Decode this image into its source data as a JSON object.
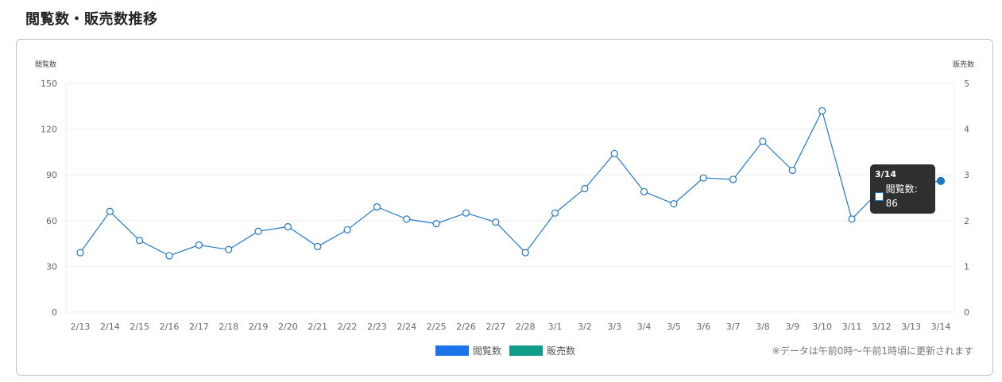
{
  "page": {
    "title": "閲覧数・販売数推移",
    "footnote": "※データは午前0時〜午前1時頃に更新されます"
  },
  "colors": {
    "views_line": "#1f78c8",
    "views_legend": "#1a73e8",
    "sales_legend": "#0f9d8a",
    "grid": "#eeeeee",
    "tooltip_bg": "#2f2f2f"
  },
  "chart_data": {
    "type": "line",
    "categories": [
      "2/13",
      "2/14",
      "2/15",
      "2/16",
      "2/17",
      "2/18",
      "2/19",
      "2/20",
      "2/21",
      "2/22",
      "2/23",
      "2/24",
      "2/25",
      "2/26",
      "2/27",
      "2/28",
      "3/1",
      "3/2",
      "3/3",
      "3/4",
      "3/5",
      "3/6",
      "3/7",
      "3/8",
      "3/9",
      "3/10",
      "3/11",
      "3/12",
      "3/13",
      "3/14"
    ],
    "series": [
      {
        "name": "閲覧数",
        "axis": "left",
        "values": [
          39,
          66,
          47,
          37,
          44,
          41,
          53,
          56,
          43,
          54,
          69,
          61,
          58,
          65,
          59,
          39,
          65,
          81,
          104,
          79,
          71,
          88,
          87,
          112,
          93,
          132,
          61,
          81,
          null,
          86
        ]
      },
      {
        "name": "販売数",
        "axis": "right",
        "values": [
          0,
          0,
          0,
          0,
          0,
          0,
          0,
          0,
          0,
          0,
          0,
          0,
          0,
          0,
          0,
          0,
          0,
          0,
          0,
          0,
          0,
          0,
          0,
          0,
          0,
          0,
          0,
          0,
          0,
          0
        ]
      }
    ],
    "y_left": {
      "label": "閲覧数",
      "ticks": [
        "150",
        "120",
        "90",
        "60",
        "30",
        "0"
      ],
      "ylim": [
        0,
        150
      ]
    },
    "y_right": {
      "label": "販売数",
      "ticks": [
        "5",
        "4",
        "3",
        "2",
        "1",
        "0"
      ],
      "ylim": [
        0,
        5
      ]
    },
    "grid": true,
    "legend_position": "bottom-center",
    "tooltip": {
      "title": "3/14",
      "text": "閲覧数: 86"
    }
  },
  "legend": {
    "views": "閲覧数",
    "sales": "販売数"
  }
}
